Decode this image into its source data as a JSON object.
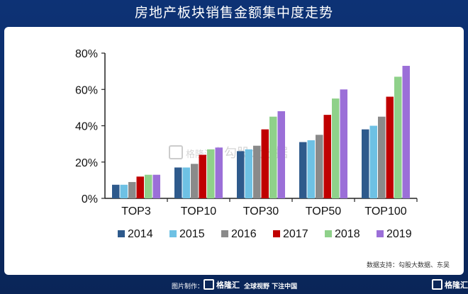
{
  "header": {
    "title": "房地产板块销售金额集中度走势"
  },
  "watermark": {
    "brand": "格隆汇",
    "text": "勾股大数据"
  },
  "source": "数据支持：勾股大数据、东吴",
  "footer": {
    "made_by": "图片制作：",
    "brand": "格隆汇",
    "slogan": "全球视野 下注中国",
    "right_brand": "格隆汇"
  },
  "chart_data": {
    "type": "bar",
    "title": "",
    "xlabel": "",
    "ylabel": "",
    "categories": [
      "TOP3",
      "TOP10",
      "TOP30",
      "TOP50",
      "TOP100"
    ],
    "ylim": [
      0,
      80
    ],
    "yticks": [
      "0%",
      "20%",
      "40%",
      "60%",
      "80%"
    ],
    "legend_position": "bottom",
    "grid": false,
    "series": [
      {
        "name": "2014",
        "color": "#2e5a8c",
        "values": [
          7.5,
          17,
          26,
          31,
          38
        ]
      },
      {
        "name": "2015",
        "color": "#6ec1e4",
        "values": [
          7.5,
          17,
          27,
          32,
          40
        ]
      },
      {
        "name": "2016",
        "color": "#8a8a8a",
        "values": [
          9,
          19,
          29,
          35,
          45
        ]
      },
      {
        "name": "2017",
        "color": "#c00000",
        "values": [
          12,
          24,
          38,
          46,
          56
        ]
      },
      {
        "name": "2018",
        "color": "#8fd18a",
        "values": [
          13,
          27,
          45,
          55,
          67
        ]
      },
      {
        "name": "2019",
        "color": "#9b6fd8",
        "values": [
          13,
          28,
          48,
          60,
          73
        ]
      }
    ]
  }
}
